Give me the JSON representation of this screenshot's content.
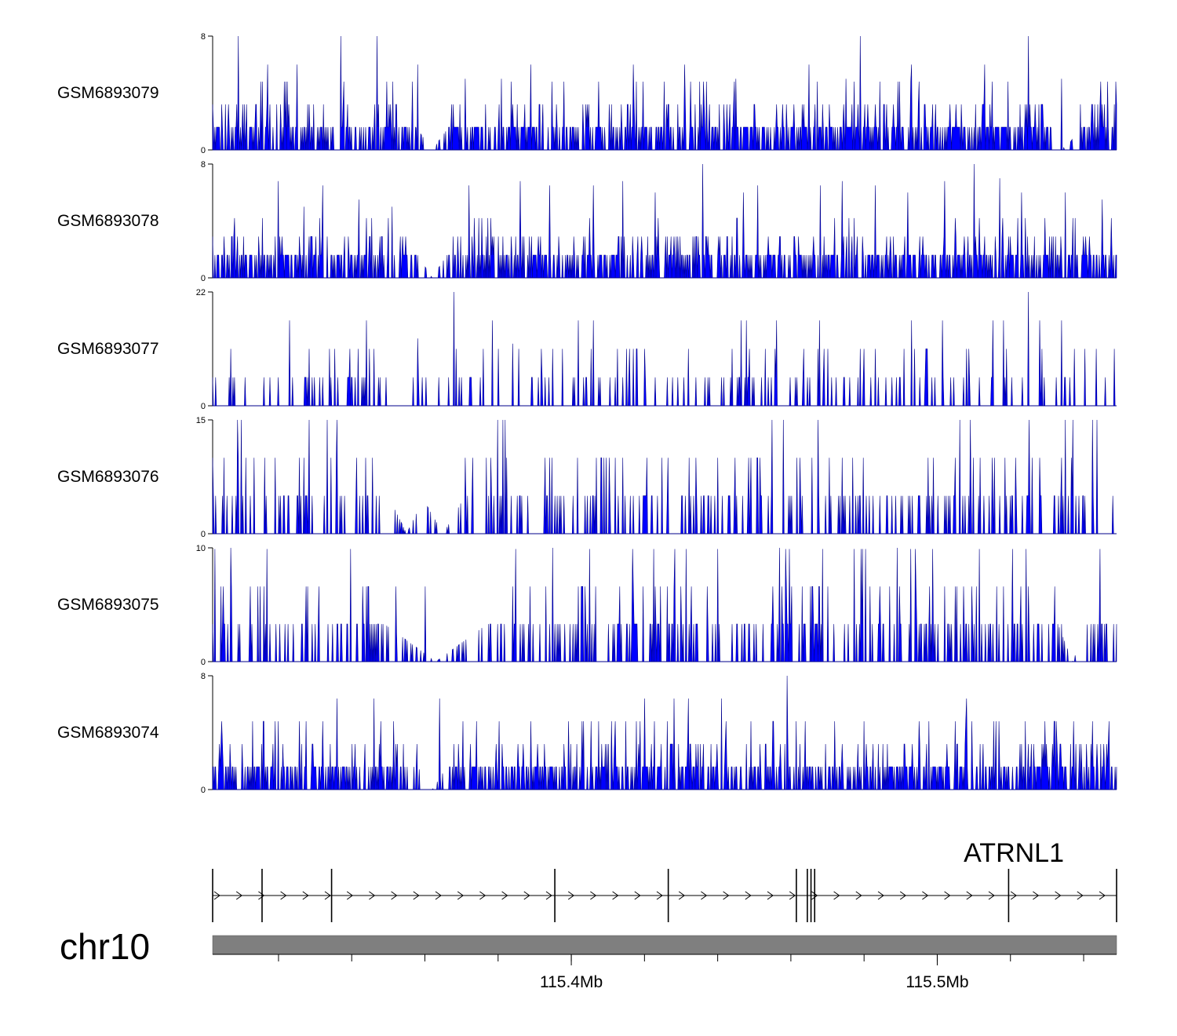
{
  "chart_data": {
    "type": "area",
    "chromosome": "chr10",
    "x_range_mb": [
      115.302,
      115.549
    ],
    "tracks": [
      {
        "name": "GSM6893079",
        "ylim": [
          0,
          8
        ],
        "baseline": 1.6,
        "step": 1.6,
        "density": 0.55,
        "peaks": [
          [
            115.309,
            8
          ],
          [
            115.337,
            8
          ],
          [
            115.347,
            8
          ],
          [
            115.302,
            3.2
          ],
          [
            115.317,
            6
          ],
          [
            115.325,
            6
          ],
          [
            115.358,
            6
          ],
          [
            115.371,
            5
          ],
          [
            115.381,
            5
          ],
          [
            115.389,
            6
          ],
          [
            115.417,
            6
          ],
          [
            115.431,
            6
          ],
          [
            115.445,
            5
          ],
          [
            115.465,
            6
          ],
          [
            115.475,
            5
          ],
          [
            115.479,
            8
          ],
          [
            115.493,
            6
          ],
          [
            115.513,
            6
          ],
          [
            115.525,
            8
          ],
          [
            115.534,
            5
          ],
          [
            115.545,
            3.2
          ]
        ],
        "gaps": [
          [
            115.362,
            0.0045
          ],
          [
            115.535,
            0.004
          ]
        ]
      },
      {
        "name": "GSM6893078",
        "ylim": [
          0,
          8
        ],
        "baseline": 1.6,
        "step": 1.3,
        "density": 0.55,
        "peaks": [
          [
            115.32,
            6.8
          ],
          [
            115.332,
            6.5
          ],
          [
            115.327,
            5
          ],
          [
            115.342,
            5.5
          ],
          [
            115.351,
            5
          ],
          [
            115.372,
            6.5
          ],
          [
            115.386,
            6.8
          ],
          [
            115.394,
            6.5
          ],
          [
            115.406,
            6.5
          ],
          [
            115.414,
            6.8
          ],
          [
            115.423,
            6
          ],
          [
            115.436,
            8
          ],
          [
            115.447,
            6
          ],
          [
            115.451,
            6.5
          ],
          [
            115.468,
            6.5
          ],
          [
            115.474,
            6.8
          ],
          [
            115.483,
            6.5
          ],
          [
            115.492,
            6
          ],
          [
            115.502,
            6.8
          ],
          [
            115.51,
            8
          ],
          [
            115.517,
            7
          ],
          [
            115.523,
            6
          ],
          [
            115.535,
            6
          ],
          [
            115.545,
            5.5
          ]
        ],
        "gaps": [
          [
            115.362,
            0.004
          ]
        ]
      },
      {
        "name": "GSM6893077",
        "ylim": [
          0,
          22
        ],
        "baseline": 5.5,
        "step": 5.5,
        "density": 0.16,
        "peaks": [
          [
            115.302,
            5.5
          ],
          [
            115.307,
            11
          ],
          [
            115.323,
            16.5
          ],
          [
            115.344,
            16.5
          ],
          [
            115.358,
            11
          ],
          [
            115.358,
            13
          ],
          [
            115.368,
            22
          ],
          [
            115.376,
            11
          ],
          [
            115.384,
            12
          ],
          [
            115.395,
            11
          ],
          [
            115.406,
            16.5
          ],
          [
            115.416,
            11
          ],
          [
            115.42,
            11
          ],
          [
            115.432,
            11
          ],
          [
            115.453,
            11
          ],
          [
            115.456,
            16.5
          ],
          [
            115.47,
            11
          ],
          [
            115.48,
            11
          ],
          [
            115.483,
            11
          ],
          [
            115.497,
            11
          ],
          [
            115.519,
            11
          ],
          [
            115.525,
            22
          ],
          [
            115.528,
            16.5
          ]
        ],
        "gaps": []
      },
      {
        "name": "GSM6893076",
        "ylim": [
          0,
          15
        ],
        "baseline": 5,
        "step": 5,
        "density": 0.22,
        "peaks": [
          [
            115.302,
            10
          ],
          [
            115.305,
            10
          ],
          [
            115.311,
            10
          ],
          [
            115.327,
            10
          ],
          [
            115.336,
            15
          ],
          [
            115.373,
            10
          ],
          [
            115.378,
            10
          ],
          [
            115.394,
            10
          ],
          [
            115.409,
            10
          ],
          [
            115.412,
            10
          ],
          [
            115.434,
            10
          ],
          [
            115.44,
            10
          ],
          [
            115.451,
            10
          ],
          [
            115.458,
            15
          ],
          [
            115.474,
            10
          ],
          [
            115.477,
            10
          ],
          [
            115.499,
            10
          ],
          [
            115.505,
            10
          ],
          [
            115.509,
            15
          ],
          [
            115.528,
            10
          ],
          [
            115.534,
            10
          ],
          [
            115.548,
            5
          ]
        ],
        "gaps": [
          [
            115.355,
            0.005
          ],
          [
            115.365,
            0.006
          ]
        ]
      },
      {
        "name": "GSM6893075",
        "ylim": [
          0,
          10
        ],
        "baseline": 3.3,
        "step": 3.3,
        "density": 0.3,
        "peaks": [
          [
            115.302,
            3.3
          ],
          [
            115.307,
            10
          ],
          [
            115.315,
            6.6
          ],
          [
            115.316,
            6.6
          ],
          [
            115.343,
            6.6
          ],
          [
            115.344,
            6.6
          ],
          [
            115.352,
            6.6
          ],
          [
            115.36,
            6.6
          ],
          [
            115.384,
            6.6
          ],
          [
            115.395,
            10
          ],
          [
            115.403,
            6.6
          ],
          [
            115.423,
            6.6
          ],
          [
            115.43,
            6.6
          ],
          [
            115.457,
            10
          ],
          [
            115.463,
            6.6
          ],
          [
            115.47,
            6.6
          ],
          [
            115.489,
            10
          ],
          [
            115.505,
            6.6
          ],
          [
            115.518,
            6.6
          ],
          [
            115.525,
            6.6
          ],
          [
            115.534,
            3.3
          ],
          [
            115.545,
            3.3
          ]
        ],
        "gaps": [
          [
            115.363,
            0.014
          ],
          [
            115.537,
            0.004
          ]
        ]
      },
      {
        "name": "GSM6893074",
        "ylim": [
          0,
          8
        ],
        "baseline": 1.6,
        "step": 1.6,
        "density": 0.5,
        "peaks": [
          [
            115.302,
            1.6
          ],
          [
            115.313,
            4.8
          ],
          [
            115.316,
            4.8
          ],
          [
            115.32,
            4.8
          ],
          [
            115.336,
            6.4
          ],
          [
            115.346,
            6.4
          ],
          [
            115.364,
            6.4
          ],
          [
            115.374,
            4.8
          ],
          [
            115.389,
            4.8
          ],
          [
            115.403,
            4.8
          ],
          [
            115.412,
            4.8
          ],
          [
            115.42,
            6.4
          ],
          [
            115.428,
            6.4
          ],
          [
            115.432,
            6.4
          ],
          [
            115.441,
            6.4
          ],
          [
            115.459,
            8
          ],
          [
            115.464,
            4.8
          ],
          [
            115.472,
            4.8
          ],
          [
            115.48,
            4.8
          ],
          [
            115.495,
            4.8
          ],
          [
            115.508,
            6.4
          ],
          [
            115.516,
            4.8
          ],
          [
            115.524,
            4.8
          ],
          [
            115.532,
            4.8
          ],
          [
            115.547,
            4.8
          ]
        ],
        "gaps": [
          [
            115.362,
            0.004
          ]
        ]
      }
    ],
    "gene": {
      "name": "ATRNL1",
      "start_mb": 115.302,
      "end_mb": 115.549,
      "strand": "+",
      "exons_mb": [
        115.302,
        115.3155,
        115.3345,
        115.3955,
        115.4265,
        115.4615,
        115.4645,
        115.4655,
        115.4665,
        115.5195,
        115.549
      ]
    },
    "ideogram": {
      "tick_mb": [
        115.32,
        115.34,
        115.36,
        115.38,
        115.4,
        115.42,
        115.44,
        115.46,
        115.48,
        115.5,
        115.52,
        115.54
      ],
      "labeled_ticks": [
        {
          "mb": 115.4,
          "label": "115.4Mb"
        },
        {
          "mb": 115.5,
          "label": "115.5Mb"
        }
      ]
    },
    "colors": {
      "signal": "#0000ff",
      "signal_outline": "#00008b",
      "ideogram": "#7f7f7f",
      "gene": "#000000"
    }
  }
}
